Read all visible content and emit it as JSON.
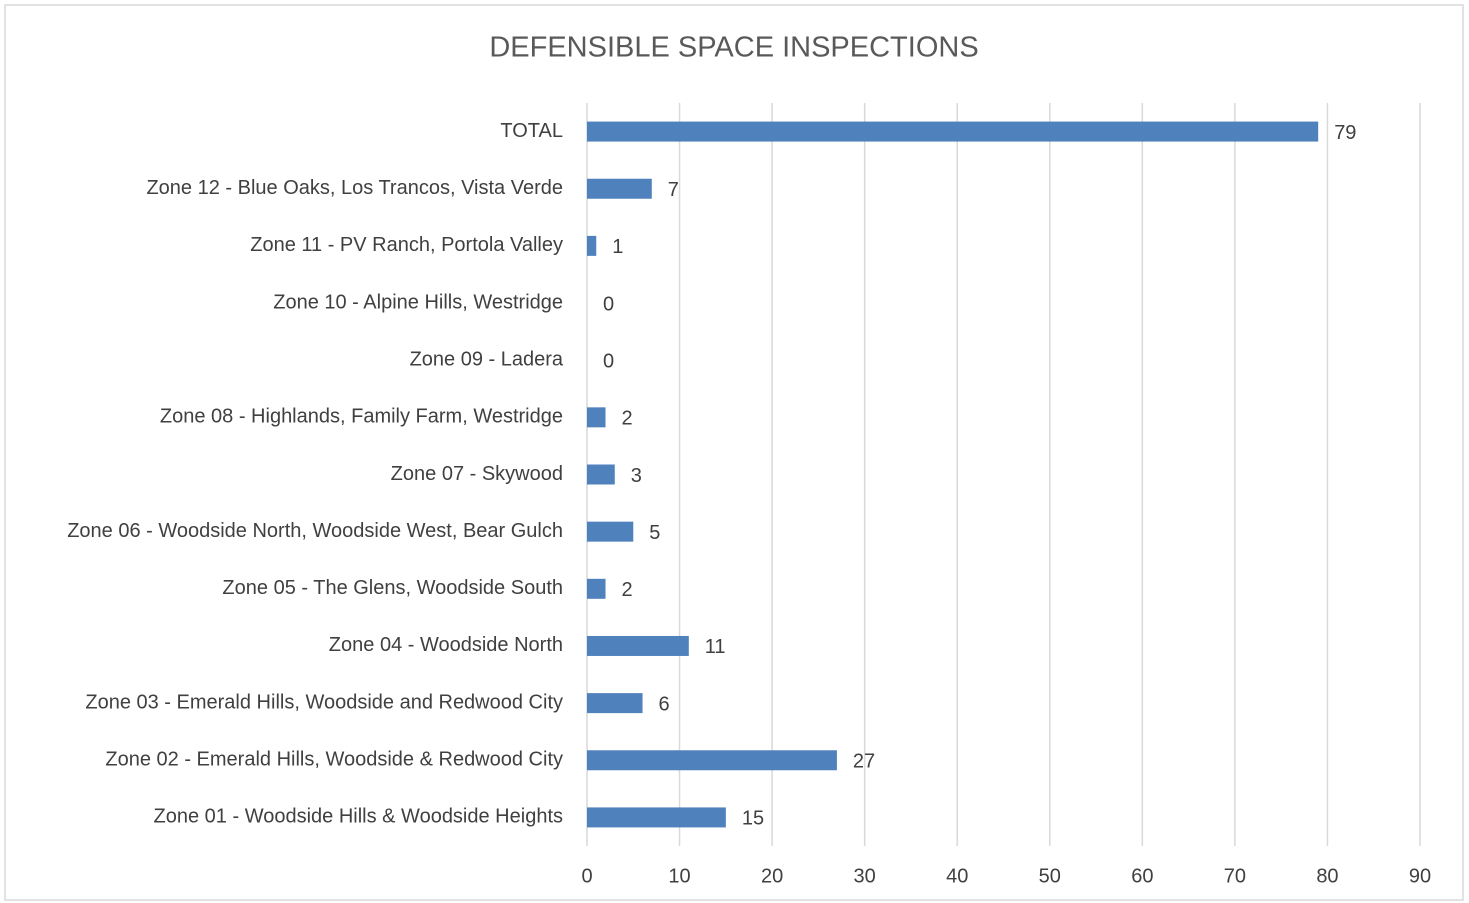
{
  "chart_data": {
    "type": "bar",
    "orientation": "horizontal",
    "title": "DEFENSIBLE SPACE INSPECTIONS",
    "categories": [
      "TOTAL",
      "Zone 12 - Blue Oaks, Los Trancos, Vista Verde",
      "Zone 11 - PV Ranch, Portola Valley",
      "Zone 10 - Alpine Hills, Westridge",
      "Zone 09 - Ladera",
      "Zone 08 - Highlands, Family Farm, Westridge",
      "Zone 07 - Skywood",
      "Zone 06 - Woodside North, Woodside West, Bear Gulch",
      "Zone 05 - The Glens, Woodside South",
      "Zone 04 - Woodside North",
      "Zone 03 - Emerald Hills, Woodside and Redwood City",
      "Zone 02 - Emerald Hills, Woodside & Redwood City",
      "Zone 01 - Woodside Hills & Woodside Heights"
    ],
    "values": [
      79,
      7,
      1,
      0,
      0,
      2,
      3,
      5,
      2,
      11,
      6,
      27,
      15
    ],
    "color": "#4f81bd",
    "xlim": [
      0,
      90
    ],
    "xticks": [
      0,
      10,
      20,
      30,
      40,
      50,
      60,
      70,
      80,
      90
    ],
    "grid": true
  }
}
